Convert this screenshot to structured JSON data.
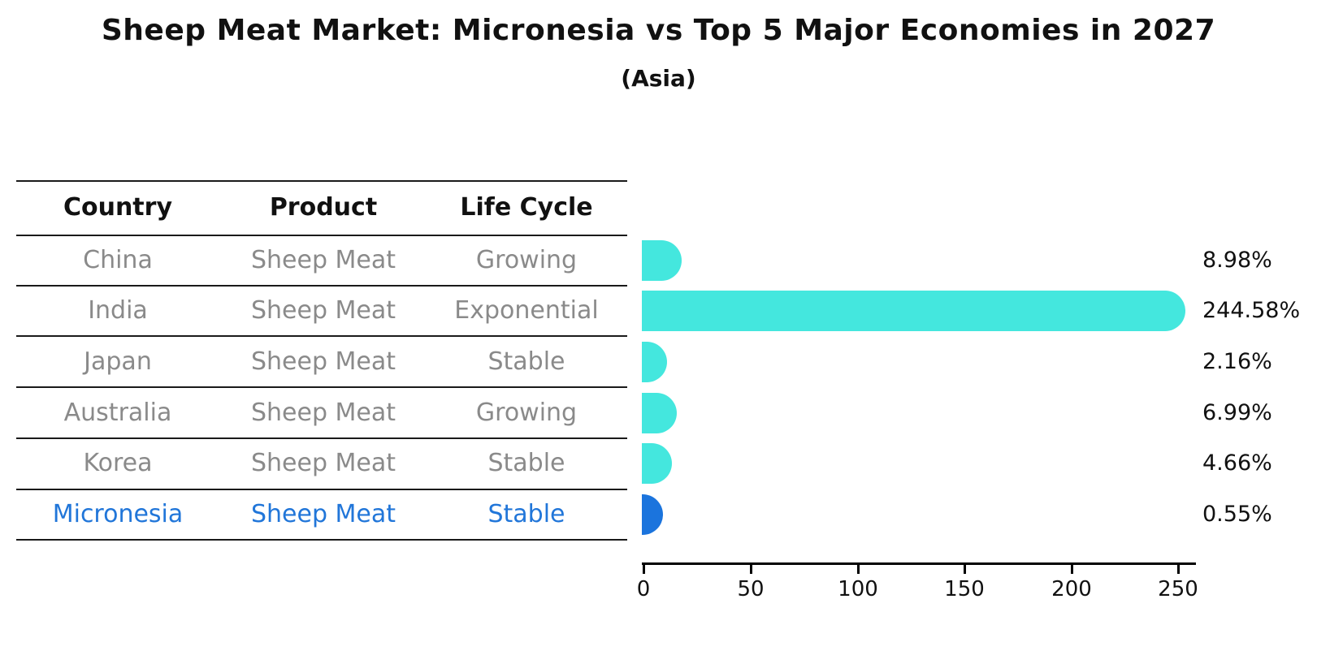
{
  "chart_data": {
    "type": "bar",
    "orientation": "horizontal",
    "title": "Sheep Meat Market: Micronesia vs Top 5 Major Economies in 2027",
    "subtitle": "(Asia)",
    "categories": [
      "China",
      "India",
      "Japan",
      "Australia",
      "Korea",
      "Micronesia"
    ],
    "values": [
      8.98,
      244.58,
      2.16,
      6.99,
      4.66,
      0.55
    ],
    "value_labels": [
      "8.98%",
      "244.58%",
      "2.16%",
      "6.99%",
      "4.66%",
      "0.55%"
    ],
    "x_ticks": [
      "0",
      "50",
      "100",
      "150",
      "200",
      "250"
    ],
    "x_tick_values": [
      0,
      50,
      100,
      150,
      200,
      250
    ],
    "xlim": [
      0,
      258
    ],
    "grid": false,
    "legend": false,
    "bar_colors": [
      "#44E7DE",
      "#44E7DE",
      "#44E7DE",
      "#44E7DE",
      "#44E7DE",
      "#1B74DD"
    ],
    "highlighted_category": "Micronesia"
  },
  "table": {
    "headers": [
      "Country",
      "Product",
      "Life Cycle"
    ],
    "rows": [
      {
        "country": "China",
        "product": "Sheep Meat",
        "life_cycle": "Growing"
      },
      {
        "country": "India",
        "product": "Sheep Meat",
        "life_cycle": "Exponential"
      },
      {
        "country": "Japan",
        "product": "Sheep Meat",
        "life_cycle": "Stable"
      },
      {
        "country": "Australia",
        "product": "Sheep Meat",
        "life_cycle": "Growing"
      },
      {
        "country": "Korea",
        "product": "Sheep Meat",
        "life_cycle": "Stable"
      },
      {
        "country": "Micronesia",
        "product": "Sheep Meat",
        "life_cycle": "Stable"
      }
    ],
    "highlighted_row": "Micronesia"
  },
  "colors": {
    "bar_cyan": "#44E7DE",
    "bar_blue": "#1B74DD",
    "highlight_text": "#2176D9",
    "row_text": "#8A8A8A",
    "header_text": "#111111",
    "axis": "#000000"
  }
}
